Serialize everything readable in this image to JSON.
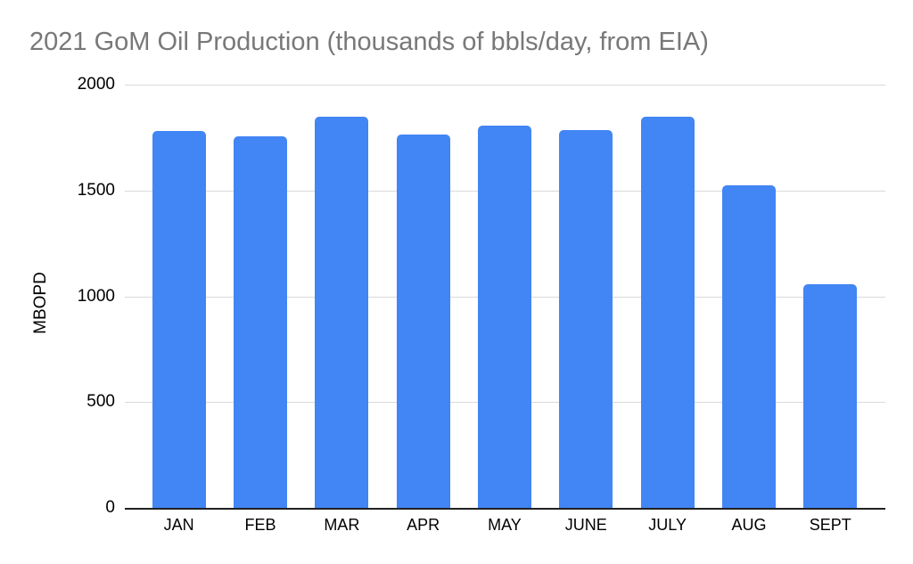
{
  "chart_data": {
    "type": "bar",
    "title": "2021 GoM Oil Production (thousands of bbls/day, from EIA)",
    "categories": [
      "JAN",
      "FEB",
      "MAR",
      "APR",
      "MAY",
      "JUNE",
      "JULY",
      "AUG",
      "SEPT"
    ],
    "values": [
      1780,
      1755,
      1850,
      1765,
      1805,
      1785,
      1850,
      1525,
      1055
    ],
    "xlabel": "",
    "ylabel": "MBOPD",
    "ylim": [
      0,
      2000
    ],
    "yticks": [
      0,
      500,
      1000,
      1500,
      2000
    ],
    "grid": true,
    "legend": "none",
    "colors": {
      "bar": "#4285F4",
      "title": "#787878",
      "gridline": "#d9d9d9",
      "axis_line": "#212121",
      "tick_label": "#000000",
      "background": "#ffffff"
    }
  }
}
